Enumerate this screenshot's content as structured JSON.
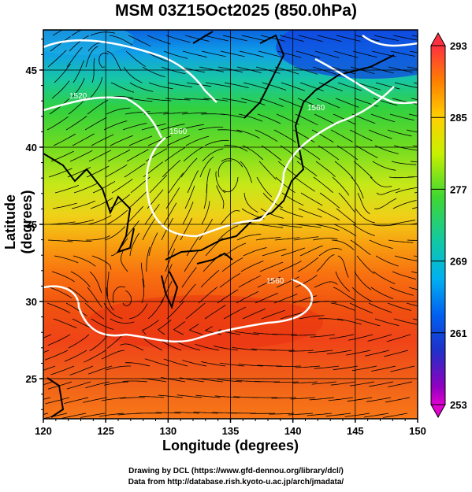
{
  "title": "MSM 03Z15Oct2025 (850.0hPa)",
  "xaxis": {
    "label": "Longitude (degrees)",
    "ticks": [
      "120",
      "125",
      "130",
      "135",
      "140",
      "145",
      "150"
    ],
    "range": [
      120,
      150
    ]
  },
  "yaxis": {
    "label": "Latitude  (degrees)",
    "ticks": [
      "25",
      "30",
      "35",
      "40",
      "45"
    ],
    "range": [
      22.4,
      47.6
    ]
  },
  "colorbar": {
    "ticks": [
      "293",
      "285",
      "277",
      "269",
      "261",
      "253"
    ],
    "range": [
      253,
      293
    ],
    "colors": [
      "#ff3040",
      "#ff8000",
      "#ffd000",
      "#d8f000",
      "#80e020",
      "#20d040",
      "#10c8a0",
      "#00b8f0",
      "#0070f0",
      "#2030d0",
      "#8000c0",
      "#e000d0"
    ]
  },
  "contour_labels": [
    "1520",
    "1560",
    "1560",
    "1560"
  ],
  "credits": {
    "line1": "Drawing by DCL (https://www.gfd-dennou.org/library/dcl/)",
    "line2": "Data from http://database.rish.kyoto-u.ac.jp/arch/jmadata/"
  }
}
